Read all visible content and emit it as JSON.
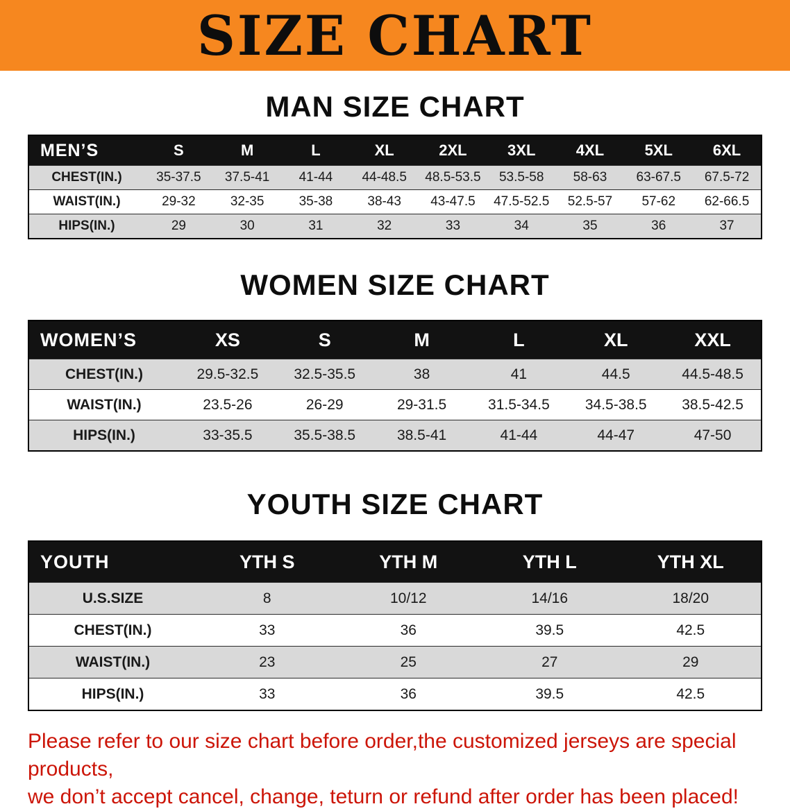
{
  "banner": {
    "title": "SIZE CHART"
  },
  "sections": [
    {
      "id": "men",
      "heading": "MAN SIZE CHART",
      "table": {
        "header": [
          "MEN’S",
          "S",
          "M",
          "L",
          "XL",
          "2XL",
          "3XL",
          "4XL",
          "5XL",
          "6XL"
        ],
        "rows": [
          [
            "CHEST(IN.)",
            "35-37.5",
            "37.5-41",
            "41-44",
            "44-48.5",
            "48.5-53.5",
            "53.5-58",
            "58-63",
            "63-67.5",
            "67.5-72"
          ],
          [
            "WAIST(IN.)",
            "29-32",
            "32-35",
            "35-38",
            "38-43",
            "43-47.5",
            "47.5-52.5",
            "52.5-57",
            "57-62",
            "62-66.5"
          ],
          [
            "HIPS(IN.)",
            "29",
            "30",
            "31",
            "32",
            "33",
            "34",
            "35",
            "36",
            "37"
          ]
        ]
      }
    },
    {
      "id": "women",
      "heading": "WOMEN SIZE CHART",
      "table": {
        "header": [
          "WOMEN’S",
          "XS",
          "S",
          "M",
          "L",
          "XL",
          "XXL"
        ],
        "rows": [
          [
            "CHEST(IN.)",
            "29.5-32.5",
            "32.5-35.5",
            "38",
            "41",
            "44.5",
            "44.5-48.5"
          ],
          [
            "WAIST(IN.)",
            "23.5-26",
            "26-29",
            "29-31.5",
            "31.5-34.5",
            "34.5-38.5",
            "38.5-42.5"
          ],
          [
            "HIPS(IN.)",
            "33-35.5",
            "35.5-38.5",
            "38.5-41",
            "41-44",
            "44-47",
            "47-50"
          ]
        ]
      }
    },
    {
      "id": "youth",
      "heading": "YOUTH SIZE CHART",
      "table": {
        "header": [
          "YOUTH",
          "YTH S",
          "YTH M",
          "YTH L",
          "YTH XL"
        ],
        "rows": [
          [
            "U.S.SIZE",
            "8",
            "10/12",
            "14/16",
            "18/20"
          ],
          [
            "CHEST(IN.)",
            "33",
            "36",
            "39.5",
            "42.5"
          ],
          [
            "WAIST(IN.)",
            "23",
            "25",
            "27",
            "29"
          ],
          [
            "HIPS(IN.)",
            "33",
            "36",
            "39.5",
            "42.5"
          ]
        ]
      }
    }
  ],
  "disclaimer": {
    "line1": "Please refer to our size chart before order,the customized jerseys are special products,",
    "line2": "we don’t accept cancel, change, teturn or refund after order has been placed!"
  },
  "colors": {
    "banner_bg": "#f6871f",
    "table_header_bg": "#121212",
    "alt_row_bg": "#d9d9d9",
    "disclaimer_red": "#cc1508"
  }
}
